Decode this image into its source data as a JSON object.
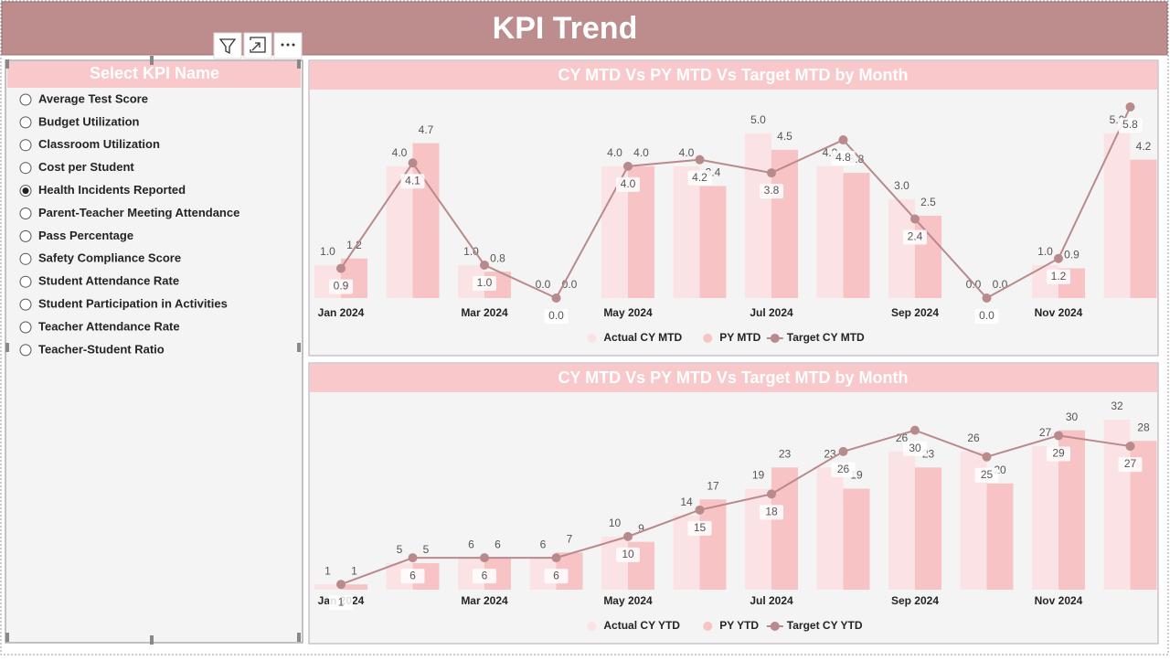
{
  "header": {
    "title": "KPI Trend"
  },
  "slicer": {
    "title": "Select KPI Name",
    "selected_index": 4,
    "options": [
      "Average Test Score",
      "Budget Utilization",
      "Classroom Utilization",
      "Cost per Student",
      "Health Incidents Reported",
      "Parent-Teacher Meeting Attendance",
      "Pass Percentage",
      "Safety Compliance Score",
      "Student Attendance Rate",
      "Student Participation in Activities",
      "Teacher Attendance Rate",
      "Teacher-Student Ratio"
    ]
  },
  "chart_data": [
    {
      "type": "bar-line",
      "title": "CY MTD Vs PY MTD Vs Target MTD by Month",
      "categories": [
        "Jan 2024",
        null,
        "Mar 2024",
        null,
        "May 2024",
        null,
        "Jul 2024",
        null,
        "Sep 2024",
        null,
        "Nov 2024",
        null
      ],
      "series": [
        {
          "name": "Actual CY MTD",
          "kind": "bar",
          "color": "#fbe3e5",
          "values": [
            1.0,
            4.0,
            1.0,
            0.0,
            4.0,
            4.0,
            5.0,
            4.0,
            3.0,
            0.0,
            1.0,
            5.0
          ],
          "value_labels": [
            "1.0",
            "4.0",
            "1.0",
            "0.0",
            "4.0",
            "4.0",
            "5.0",
            "4.0",
            "3.0",
            "0.0",
            "1.0",
            "5.0"
          ]
        },
        {
          "name": "PY MTD",
          "kind": "bar",
          "color": "#f7c3c5",
          "values": [
            1.2,
            4.7,
            0.8,
            0.0,
            4.0,
            3.4,
            4.5,
            3.8,
            2.5,
            0.0,
            0.9,
            4.2
          ],
          "value_labels": [
            "1.2",
            "4.7",
            "0.8",
            "0.0",
            "4.0",
            "3.4",
            "4.5",
            "3.8",
            "2.5",
            "0.0",
            "0.9",
            "4.2"
          ]
        },
        {
          "name": "Target CY MTD",
          "kind": "line",
          "color": "#b98a8c",
          "values": [
            0.9,
            4.1,
            1.0,
            0.0,
            4.0,
            4.2,
            3.8,
            4.8,
            2.4,
            0.0,
            1.2,
            5.8
          ],
          "value_labels": [
            "0.9",
            "4.1",
            "1.0",
            "0.0",
            "4.0",
            "4.2",
            "3.8",
            "4.8",
            "2.4",
            "0.0",
            "1.2",
            "5.8"
          ]
        }
      ]
    },
    {
      "type": "bar-line",
      "title": "CY MTD Vs PY MTD Vs Target MTD by Month",
      "categories": [
        "Jan 2024",
        null,
        "Mar 2024",
        null,
        "May 2024",
        null,
        "Jul 2024",
        null,
        "Sep 2024",
        null,
        "Nov 2024",
        null
      ],
      "series": [
        {
          "name": "Actual CY YTD",
          "kind": "bar",
          "color": "#fbe3e5",
          "values": [
            1,
            5,
            6,
            6,
            10,
            14,
            19,
            23,
            26,
            26,
            27,
            32
          ]
        },
        {
          "name": "PY YTD",
          "kind": "bar",
          "color": "#f7c3c5",
          "values": [
            1,
            5,
            6,
            7,
            9,
            17,
            23,
            19,
            23,
            20,
            30,
            28
          ]
        },
        {
          "name": "Target CY YTD",
          "kind": "line",
          "color": "#b98a8c",
          "values": [
            1,
            6,
            6,
            6,
            10,
            15,
            18,
            26,
            30,
            25,
            29,
            27
          ]
        }
      ]
    }
  ]
}
